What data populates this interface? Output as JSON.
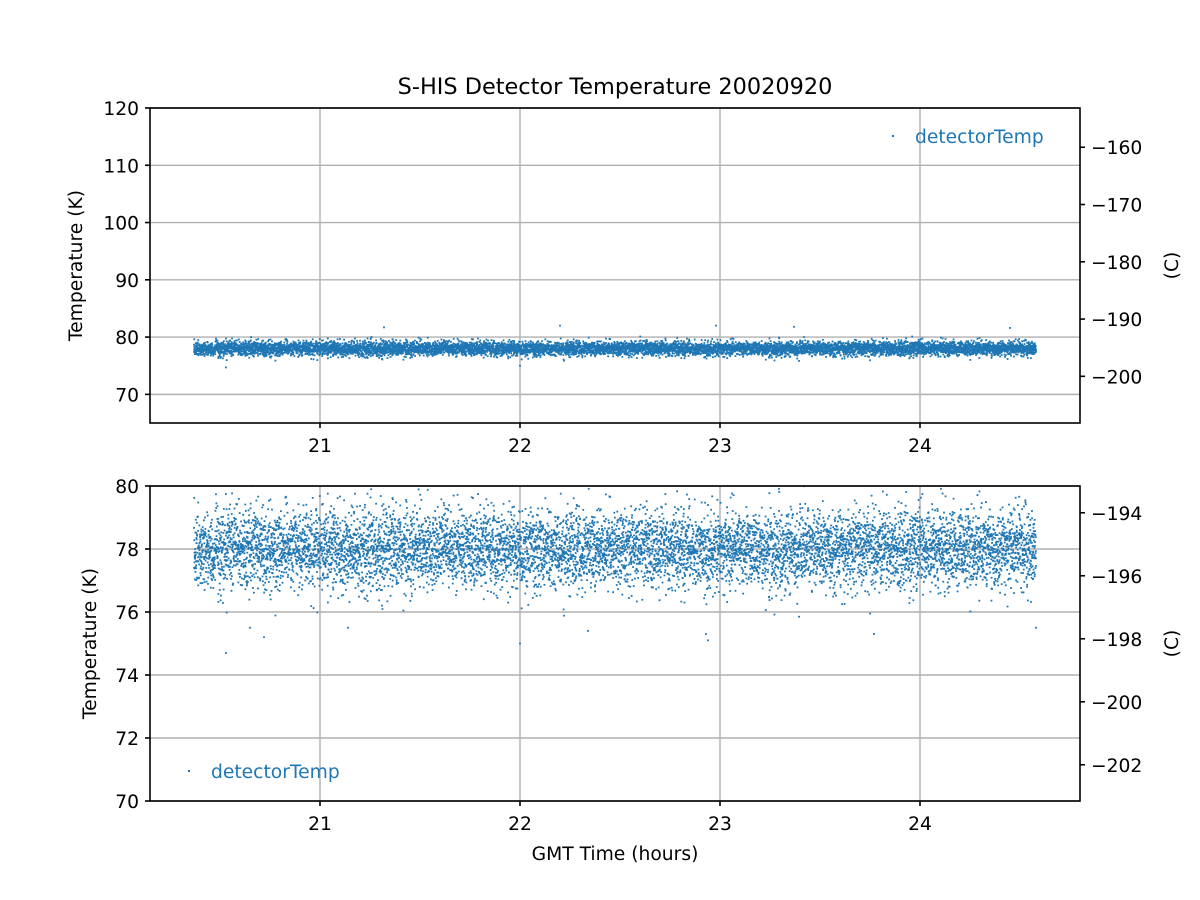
{
  "chart_data": {
    "title": "S-HIS Detector Temperature 20020920",
    "type": "scatter",
    "subplots": [
      {
        "ylabel": "Temperature (K)",
        "y2label": "(C)",
        "ylim": [
          65,
          120
        ],
        "xlim": [
          20.15,
          24.8
        ],
        "xticks": [
          21,
          22,
          23,
          24
        ],
        "yticks": [
          70,
          80,
          90,
          100,
          110,
          120
        ],
        "y2ticks": [
          -160,
          -170,
          -180,
          -190,
          -200
        ],
        "xlabel": "",
        "grid": true,
        "legend": "upper right",
        "series": [
          {
            "name": "detectorTemp",
            "color": "#1f77b4",
            "x_range": [
              20.37,
              24.58
            ],
            "y_center": 78.0,
            "y_typical_range": [
              76.5,
              79.5
            ],
            "outliers": [
              {
                "x": 20.53,
                "y": 74.7
              },
              {
                "x": 21.32,
                "y": 81.7
              },
              {
                "x": 22.0,
                "y": 75.0
              },
              {
                "x": 22.2,
                "y": 82.0
              },
              {
                "x": 22.98,
                "y": 82.0
              },
              {
                "x": 23.37,
                "y": 81.8
              },
              {
                "x": 24.45,
                "y": 81.6
              }
            ]
          }
        ]
      },
      {
        "ylabel": "Temperature (K)",
        "y2label": "(C)",
        "ylim": [
          70,
          80
        ],
        "xlim": [
          20.15,
          24.8
        ],
        "xticks": [
          21,
          22,
          23,
          24
        ],
        "yticks": [
          70,
          72,
          74,
          76,
          78,
          80
        ],
        "y2ticks": [
          -194,
          -196,
          -198,
          -200,
          -202
        ],
        "xlabel": "GMT Time (hours)",
        "grid": true,
        "legend": "lower left",
        "series": [
          {
            "name": "detectorTemp",
            "color": "#1f77b4",
            "x_range": [
              20.37,
              24.58
            ],
            "y_center": 78.0,
            "y_typical_range": [
              76.5,
              79.5
            ],
            "outliers": [
              {
                "x": 20.53,
                "y": 74.7
              },
              {
                "x": 20.72,
                "y": 75.2
              },
              {
                "x": 20.65,
                "y": 75.5
              },
              {
                "x": 21.14,
                "y": 75.5
              },
              {
                "x": 22.0,
                "y": 75.0
              },
              {
                "x": 22.34,
                "y": 75.4
              },
              {
                "x": 22.93,
                "y": 75.3
              },
              {
                "x": 22.94,
                "y": 75.1
              },
              {
                "x": 23.77,
                "y": 75.3
              },
              {
                "x": 24.58,
                "y": 75.5
              }
            ]
          }
        ]
      }
    ]
  }
}
